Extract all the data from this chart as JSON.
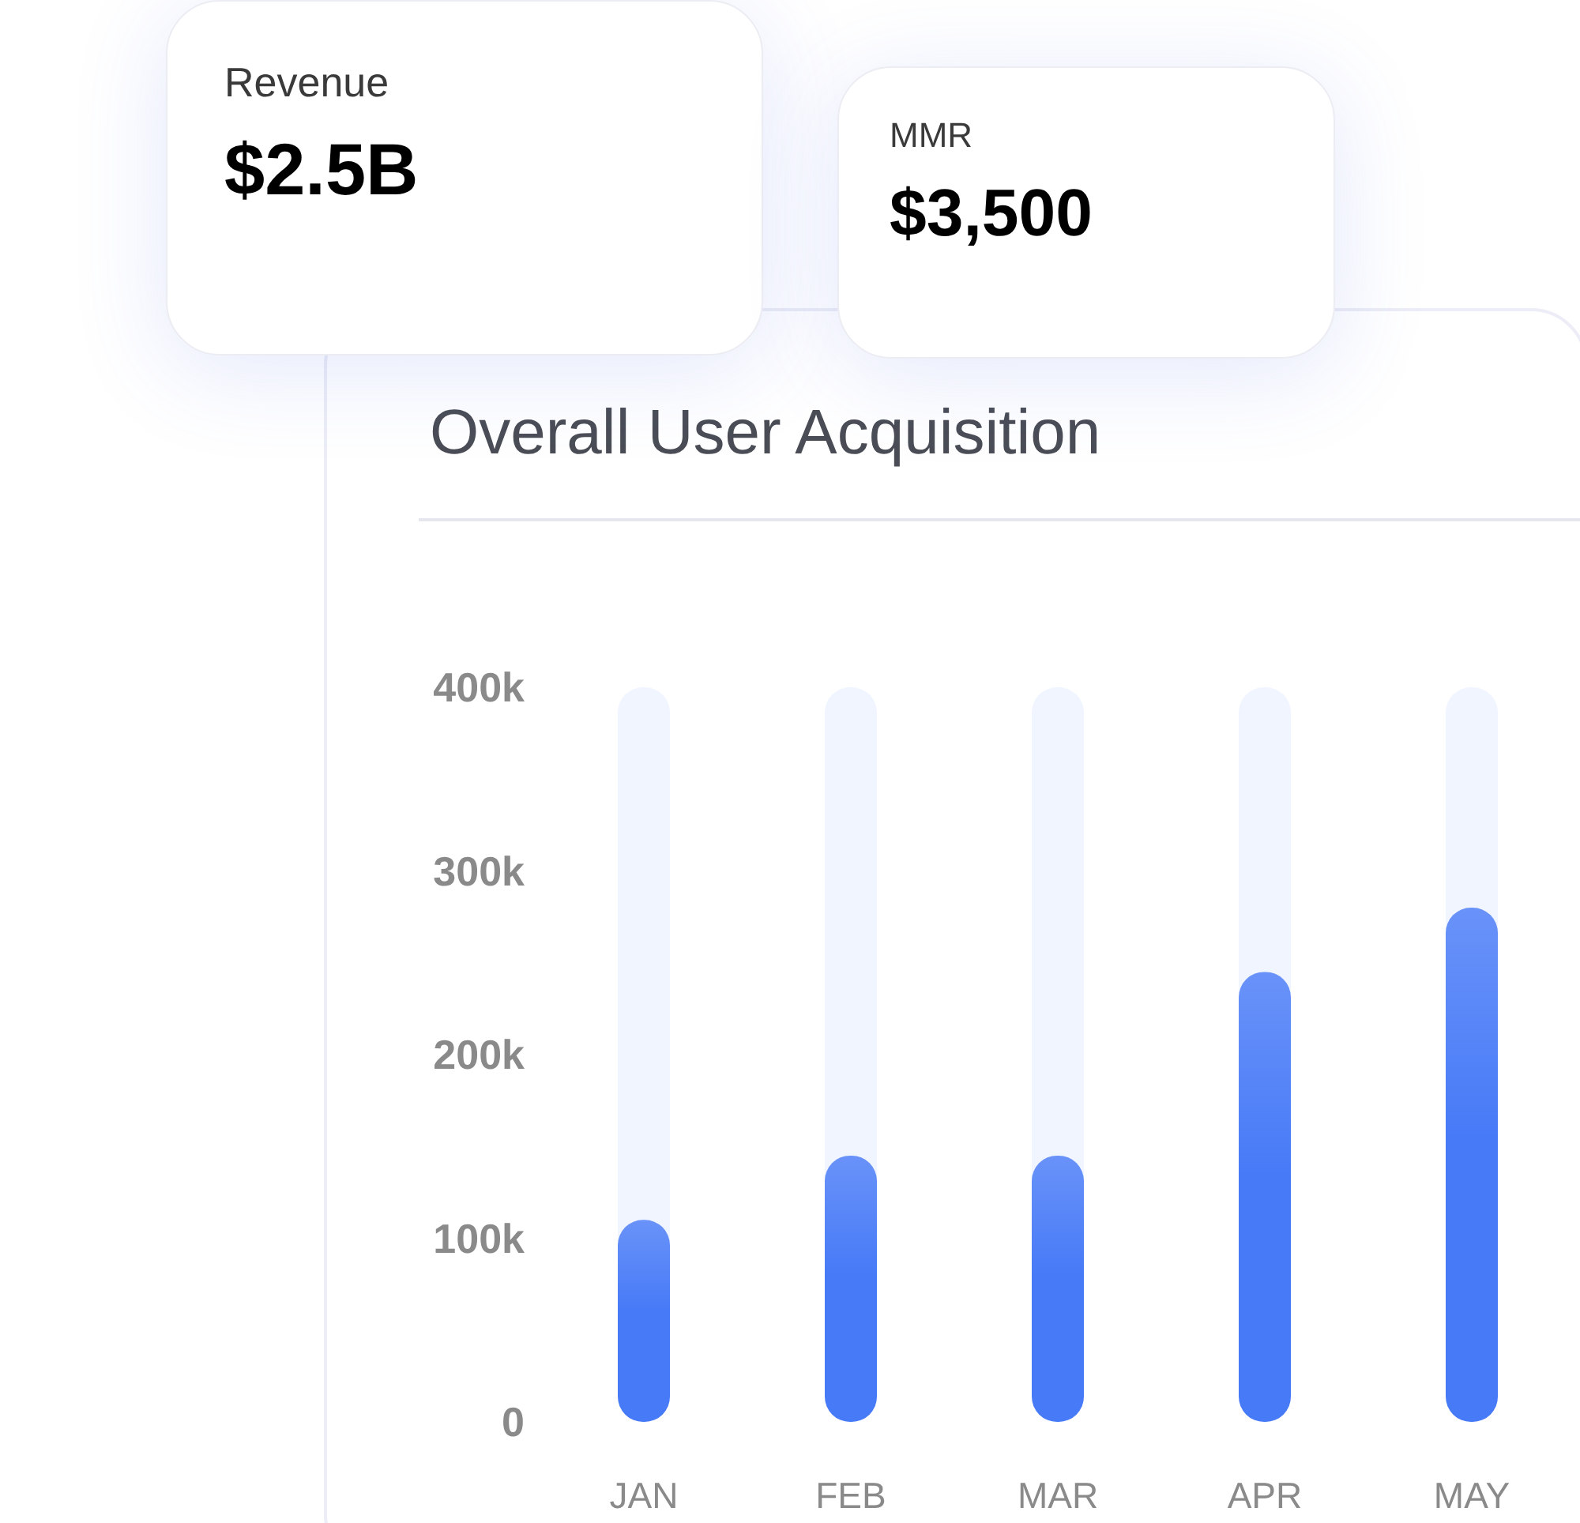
{
  "chart_data": [
    {
      "type": "other",
      "title": "Revenue",
      "annotations": [
        "$2.5B"
      ]
    },
    {
      "type": "other",
      "title": "MMR",
      "annotations": [
        "$3,500"
      ]
    },
    {
      "type": "bar",
      "title": "Overall User Acquisition",
      "categories": [
        "JAN",
        "FEB",
        "MAR",
        "APR",
        "MAY"
      ],
      "values": [
        110000,
        145000,
        145000,
        245000,
        280000
      ],
      "color": "#477af7",
      "ylim": [
        0,
        400000
      ],
      "yticks": [
        {
          "value": 0,
          "label": "0"
        },
        {
          "value": 100000,
          "label": "100k"
        },
        {
          "value": 200000,
          "label": "200k"
        },
        {
          "value": 300000,
          "label": "300k"
        },
        {
          "value": 400000,
          "label": "400k"
        }
      ],
      "grid": false,
      "legend": false
    }
  ]
}
